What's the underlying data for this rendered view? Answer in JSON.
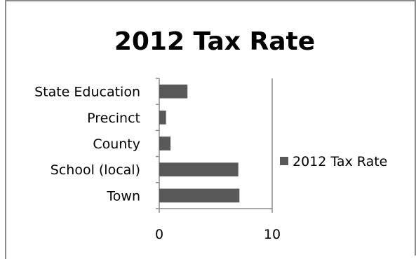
{
  "chart_data": {
    "type": "bar",
    "orientation": "horizontal",
    "title": "2012 Tax Rate",
    "categories": [
      "State Education",
      "Precinct",
      "County",
      "School (local)",
      "Town"
    ],
    "series": [
      {
        "name": "2012 Tax Rate",
        "values": [
          2.5,
          0.6,
          1.0,
          7.0,
          7.1
        ],
        "color": "#595959"
      }
    ],
    "xlim": [
      0,
      10
    ],
    "xticks": [
      "0",
      "10"
    ],
    "grid": false,
    "legend_position": "right",
    "colors": {
      "bar": "#595959",
      "axis": "#8c8c8c",
      "border": "#8c8c8c"
    }
  }
}
